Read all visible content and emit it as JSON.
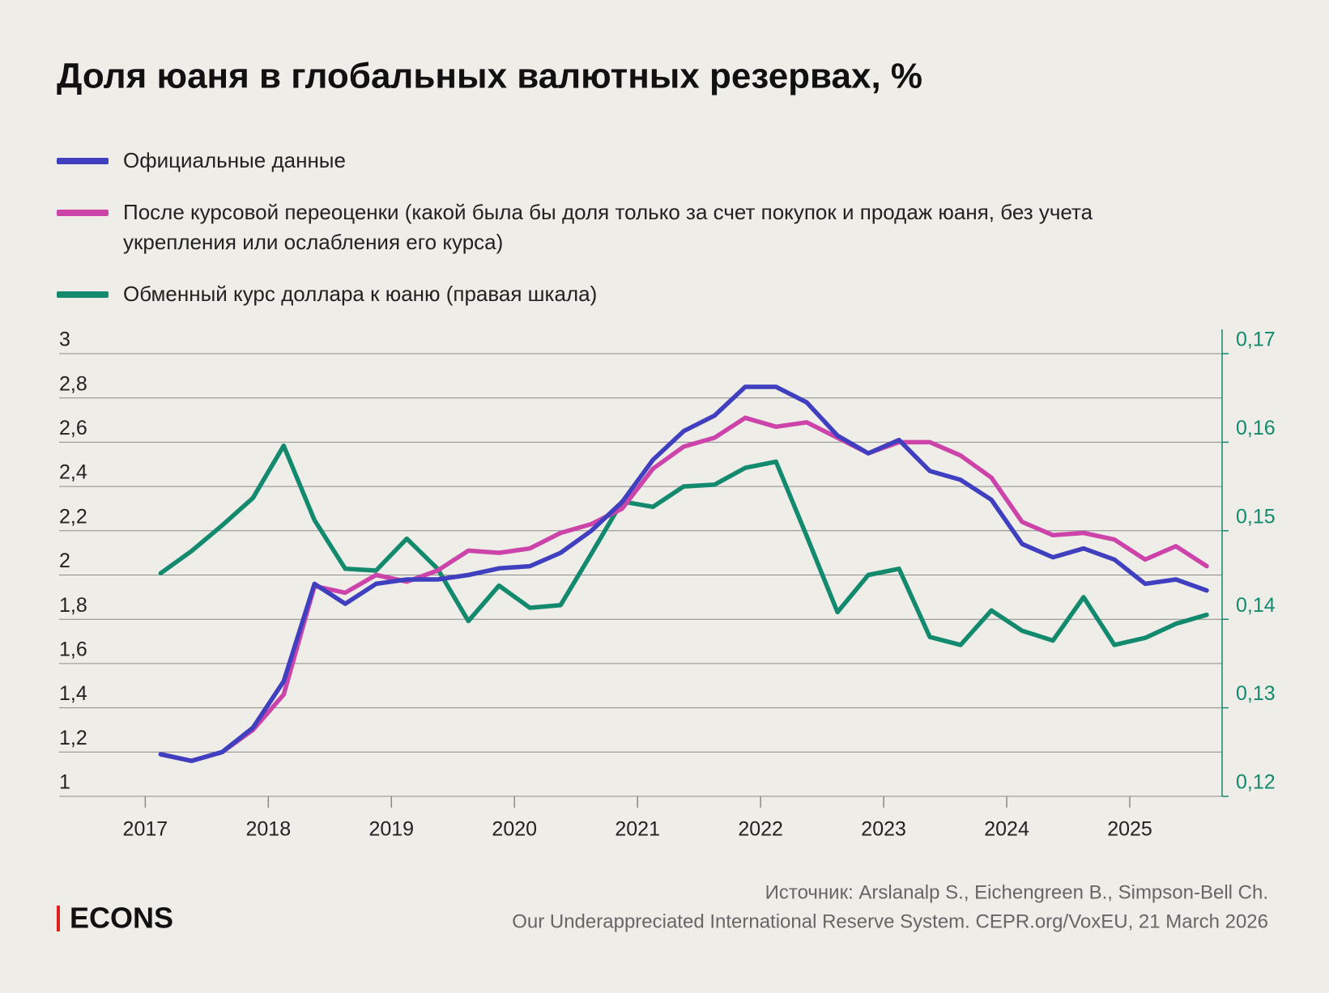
{
  "chart_data": {
    "type": "line",
    "title": "Доля юаня в глобальных валютных резервах, %",
    "x": [
      2017.125,
      2017.375,
      2017.625,
      2017.875,
      2018.125,
      2018.375,
      2018.625,
      2018.875,
      2019.125,
      2019.375,
      2019.625,
      2019.875,
      2020.125,
      2020.375,
      2020.625,
      2020.875,
      2021.125,
      2021.375,
      2021.625,
      2021.875,
      2022.125,
      2022.375,
      2022.625,
      2022.875,
      2023.125,
      2023.375,
      2023.625,
      2023.875,
      2024.125,
      2024.375,
      2024.625,
      2024.875,
      2025.125,
      2025.375,
      2025.625
    ],
    "xlim": [
      2016.3,
      2025.75
    ],
    "xticks": [
      2017,
      2018,
      2019,
      2020,
      2021,
      2022,
      2023,
      2024,
      2025
    ],
    "ylim": [
      1,
      3
    ],
    "yticks": [
      1,
      {
        "value": 1.2,
        "label": "1,2"
      },
      {
        "value": 1.4,
        "label": "1,4"
      },
      {
        "value": 1.6,
        "label": "1,6"
      },
      {
        "value": 1.8,
        "label": "1,8"
      },
      2,
      {
        "value": 2.2,
        "label": "2,2"
      },
      {
        "value": 2.4,
        "label": "2,4"
      },
      {
        "value": 2.6,
        "label": "2,6"
      },
      {
        "value": 2.8,
        "label": "2,8"
      },
      3
    ],
    "y2lim": [
      0.12,
      0.17
    ],
    "y2ticks": [
      {
        "value": 0.12,
        "label": "0,12"
      },
      {
        "value": 0.13,
        "label": "0,13"
      },
      {
        "value": 0.14,
        "label": "0,14"
      },
      {
        "value": 0.15,
        "label": "0,15"
      },
      {
        "value": 0.16,
        "label": "0,16"
      },
      {
        "value": 0.17,
        "label": "0,17"
      }
    ],
    "grid": true,
    "series": [
      {
        "name": "Официальные данные",
        "color": "#3f3fbf",
        "values": [
          1.19,
          1.16,
          1.2,
          1.31,
          1.52,
          1.96,
          1.87,
          1.96,
          1.98,
          1.98,
          2.0,
          2.03,
          2.04,
          2.1,
          2.2,
          2.33,
          2.52,
          2.65,
          2.72,
          2.85,
          2.85,
          2.78,
          2.63,
          2.55,
          2.61,
          2.47,
          2.43,
          2.34,
          2.14,
          2.08,
          2.12,
          2.07,
          1.96,
          1.98,
          1.93
        ]
      },
      {
        "name": "После курсовой переоценки (какой была бы доля только за счет покупок и продаж юаня, без учета укрепления или ослабления его курса)",
        "color": "#cc44aa",
        "values": [
          1.19,
          1.16,
          1.2,
          1.3,
          1.46,
          1.95,
          1.92,
          2.0,
          1.97,
          2.02,
          2.11,
          2.1,
          2.12,
          2.19,
          2.23,
          2.3,
          2.48,
          2.58,
          2.62,
          2.71,
          2.67,
          2.69,
          2.62,
          2.55,
          2.6,
          2.6,
          2.54,
          2.44,
          2.24,
          2.18,
          2.19,
          2.16,
          2.07,
          2.13,
          2.04
        ]
      },
      {
        "name": "Обменный курс доллара к юаню (правая шкала)",
        "color": "#138a6e",
        "axis": "y2",
        "values": [
          0.1452,
          0.1477,
          0.1506,
          0.1537,
          0.1596,
          0.1512,
          0.1457,
          0.1455,
          0.1491,
          0.1457,
          0.1398,
          0.1438,
          0.1413,
          0.1416,
          0.1474,
          0.1533,
          0.1527,
          0.155,
          0.1552,
          0.1571,
          0.1578,
          0.1494,
          0.1408,
          0.145,
          0.1457,
          0.138,
          0.1371,
          0.141,
          0.1387,
          0.1376,
          0.1425,
          0.1371,
          0.1379,
          0.1395,
          0.1405
        ]
      }
    ],
    "source": [
      "Источник: Arslanalp S., Eichengreen B., Simpson-Bell Ch.",
      "Our Underappreciated International Reserve System. CEPR.org/VoxEU, 21 March 2026"
    ],
    "brand": "ECONS"
  }
}
